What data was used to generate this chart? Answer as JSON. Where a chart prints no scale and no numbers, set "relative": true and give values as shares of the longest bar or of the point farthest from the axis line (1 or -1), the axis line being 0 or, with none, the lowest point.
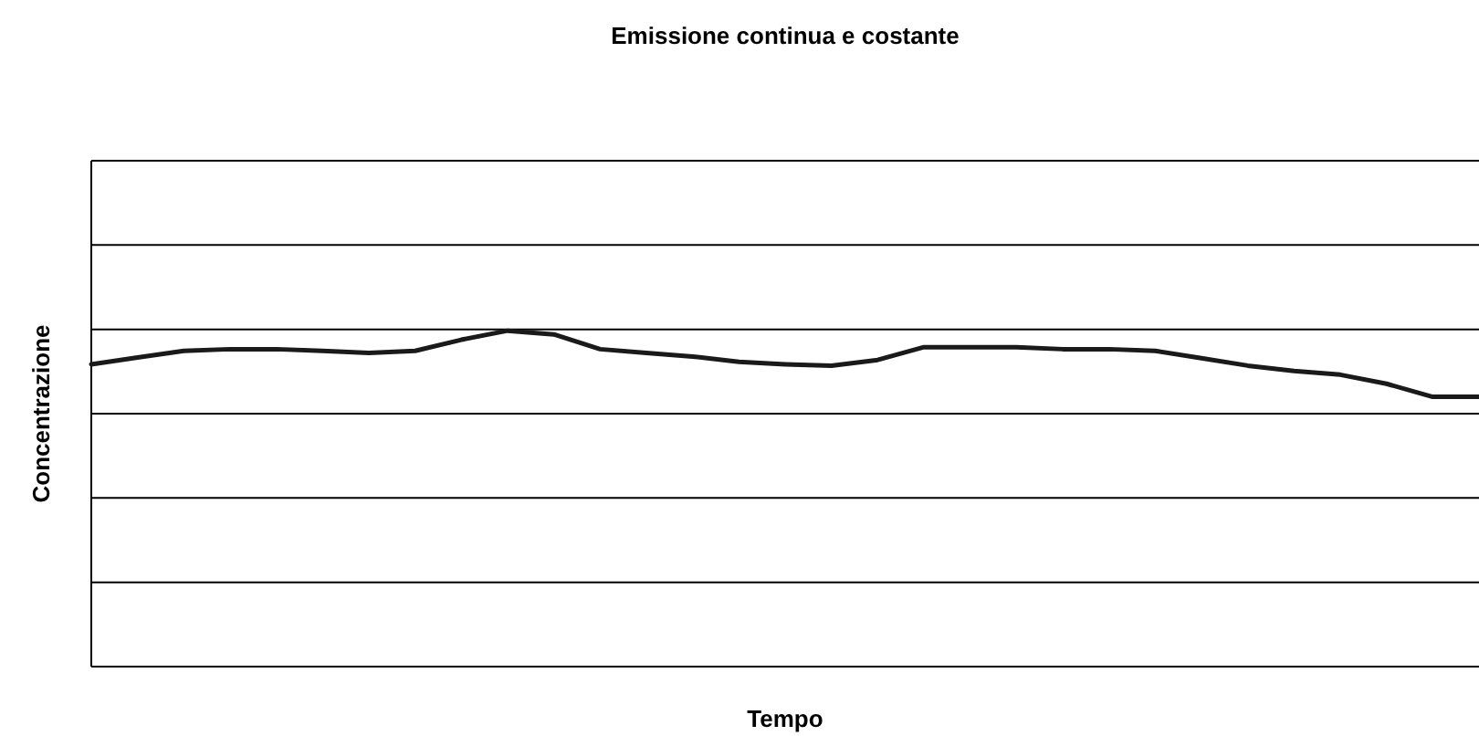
{
  "chart_data": {
    "type": "line",
    "title": "Emissione continua e costante",
    "xlabel": "Tempo",
    "ylabel": "Concentrazione",
    "relative": true,
    "grid": "y",
    "marker": "none",
    "line_style": "solid",
    "categories": [
      null,
      null,
      null,
      null,
      null,
      null,
      null,
      null,
      null,
      null,
      null,
      null,
      null,
      null,
      null,
      null,
      null,
      null,
      null,
      null,
      null,
      null,
      null,
      null,
      null,
      null,
      null,
      null,
      null,
      null,
      null
    ],
    "series": [
      {
        "color": "#1a1a1a",
        "values": [
          0.9,
          0.92,
          0.94,
          0.945,
          0.945,
          0.94,
          0.934,
          0.94,
          0.973,
          1,
          0.989,
          0.945,
          0.934,
          0.923,
          0.907,
          0.9,
          0.896,
          0.913,
          0.951,
          0.951,
          0.951,
          0.945,
          0.945,
          0.94,
          0.918,
          0.896,
          0.88,
          0.869,
          0.842,
          0.803,
          0.803
        ]
      }
    ]
  }
}
